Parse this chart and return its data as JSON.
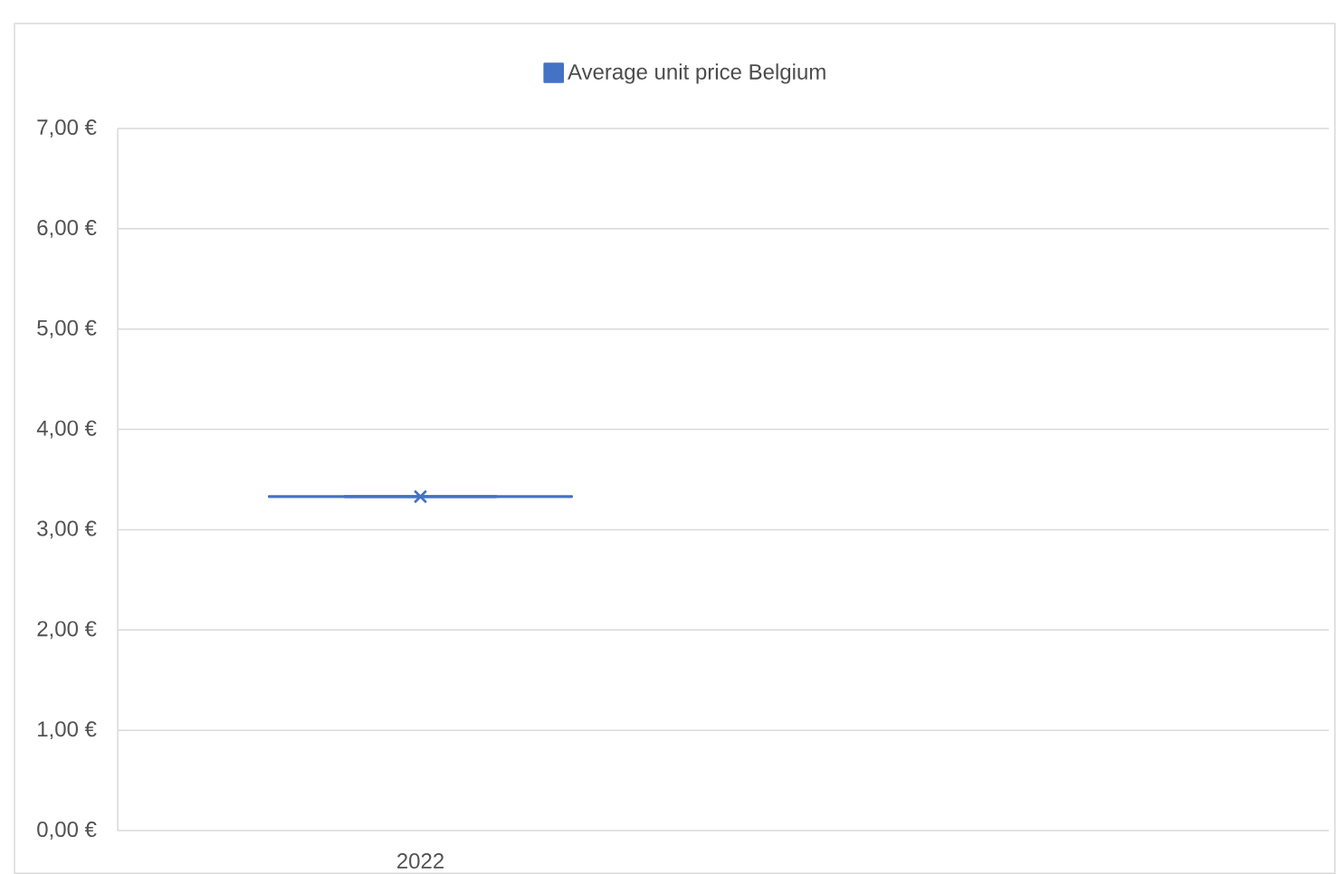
{
  "chart_data": {
    "type": "box",
    "categories": [
      "2022",
      null
    ],
    "series": [
      {
        "name": "Average unit price Belgium",
        "color": "#4472c4",
        "boxes": [
          {
            "low": 3.33,
            "q1": 3.33,
            "median": 3.33,
            "q3": 3.33,
            "high": 3.33,
            "mean": 3.33
          },
          null
        ]
      }
    ],
    "ylim": [
      0,
      7
    ],
    "yticks": [
      {
        "value": 0,
        "label": "0,00 €"
      },
      {
        "value": 1,
        "label": "1,00 €"
      },
      {
        "value": 2,
        "label": "2,00 €"
      },
      {
        "value": 3,
        "label": "3,00 €"
      },
      {
        "value": 4,
        "label": "4,00 €"
      },
      {
        "value": 5,
        "label": "5,00 €"
      },
      {
        "value": 6,
        "label": "6,00 €"
      },
      {
        "value": 7,
        "label": "7,00 €"
      }
    ],
    "grid": "y",
    "legend": "top",
    "marker": "cross"
  }
}
